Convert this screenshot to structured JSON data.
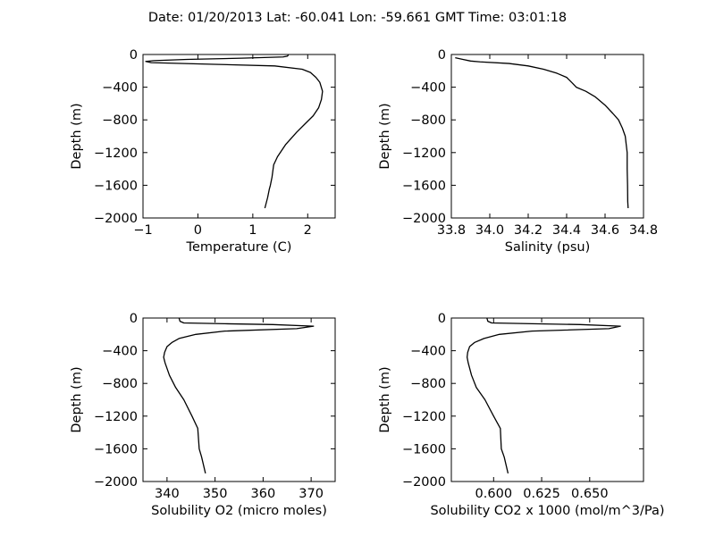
{
  "title": "Date: 01/20/2013  Lat:  -60.041 Lon:  -59.661  GMT Time: 03:01:18",
  "chart_data": [
    {
      "type": "line",
      "xlabel": "Temperature (C)",
      "ylabel": "Depth (m)",
      "xlim": [
        -1,
        2.5
      ],
      "ylim": [
        -2000,
        0
      ],
      "xticks": [
        -1,
        0,
        1,
        2
      ],
      "xtick_labels": [
        "−1",
        "0",
        "1",
        "2"
      ],
      "yticks": [
        0,
        -400,
        -800,
        -1200,
        -1600,
        -2000
      ],
      "ytick_labels": [
        "0",
        "−400",
        "−800",
        "−1200",
        "−1600",
        "−2000"
      ],
      "x": [
        1.65,
        1.63,
        1.55,
        0.8,
        -0.2,
        -0.8,
        -0.95,
        -0.85,
        0.3,
        1.4,
        1.9,
        2.05,
        2.15,
        2.22,
        2.27,
        2.25,
        2.2,
        2.1,
        1.95,
        1.8,
        1.6,
        1.45,
        1.38,
        1.37,
        1.35,
        1.32,
        1.3,
        1.27,
        1.22
      ],
      "y": [
        -5,
        -20,
        -30,
        -45,
        -60,
        -75,
        -85,
        -100,
        -120,
        -140,
        -180,
        -220,
        -280,
        -340,
        -450,
        -550,
        -650,
        -750,
        -850,
        -950,
        -1100,
        -1250,
        -1350,
        -1400,
        -1500,
        -1600,
        -1650,
        -1750,
        -1880
      ]
    },
    {
      "type": "line",
      "xlabel": "Salinity (psu)",
      "ylabel": "Depth (m)",
      "xlim": [
        33.8,
        34.8
      ],
      "ylim": [
        -2000,
        0
      ],
      "xticks": [
        33.8,
        34.0,
        34.2,
        34.4,
        34.6,
        34.8
      ],
      "xtick_labels": [
        "33.8",
        "34.0",
        "34.2",
        "34.4",
        "34.6",
        "34.8"
      ],
      "yticks": [
        0,
        -400,
        -800,
        -1200,
        -1600,
        -2000
      ],
      "ytick_labels": [
        "0",
        "−400",
        "−800",
        "−1200",
        "−1600",
        "−2000"
      ],
      "x": [
        33.82,
        33.86,
        33.9,
        33.95,
        34.1,
        34.2,
        34.28,
        34.35,
        34.4,
        34.43,
        34.45,
        34.5,
        34.55,
        34.6,
        34.64,
        34.67,
        34.69,
        34.705,
        34.71,
        34.715,
        34.715,
        34.717,
        34.718,
        34.72
      ],
      "y": [
        -40,
        -60,
        -80,
        -90,
        -110,
        -140,
        -180,
        -230,
        -280,
        -350,
        -400,
        -450,
        -520,
        -620,
        -720,
        -800,
        -900,
        -1000,
        -1100,
        -1200,
        -1400,
        -1600,
        -1800,
        -1880
      ]
    },
    {
      "type": "line",
      "xlabel": "Solubility O2 (micro moles)",
      "ylabel": "Depth (m)",
      "xlim": [
        335,
        375
      ],
      "ylim": [
        -2000,
        0
      ],
      "xticks": [
        340,
        350,
        360,
        370
      ],
      "xtick_labels": [
        "340",
        "350",
        "360",
        "370"
      ],
      "yticks": [
        0,
        -400,
        -800,
        -1200,
        -1600,
        -2000
      ],
      "ytick_labels": [
        "0",
        "−400",
        "−800",
        "−1200",
        "−1600",
        "−2000"
      ],
      "x": [
        342.5,
        342.7,
        343.5,
        352,
        362,
        370.5,
        367,
        352,
        346,
        342.5,
        341,
        340,
        339.5,
        339.3,
        339.6,
        340.5,
        341.8,
        343.5,
        345.2,
        346.4,
        346.7,
        347.2,
        348
      ],
      "y": [
        0,
        -40,
        -60,
        -70,
        -80,
        -100,
        -130,
        -160,
        -200,
        -250,
        -300,
        -350,
        -420,
        -480,
        -550,
        -700,
        -850,
        -1000,
        -1200,
        -1350,
        -1600,
        -1700,
        -1900
      ]
    },
    {
      "type": "line",
      "xlabel": "Solubility CO2 x 1000 (mol/m^3/Pa)",
      "ylabel": "Depth (m)",
      "xlim": [
        0.578,
        0.678
      ],
      "ylim": [
        -2000,
        0
      ],
      "xticks": [
        0.6,
        0.625,
        0.65
      ],
      "xtick_labels": [
        "0.600",
        "0.625",
        "0.650"
      ],
      "yticks": [
        0,
        -400,
        -800,
        -1200,
        -1600,
        -2000
      ],
      "ytick_labels": [
        "0",
        "−400",
        "−800",
        "−1200",
        "−1600",
        "−2000"
      ],
      "x": [
        0.5965,
        0.597,
        0.599,
        0.62,
        0.645,
        0.666,
        0.66,
        0.62,
        0.603,
        0.595,
        0.59,
        0.5875,
        0.5865,
        0.5862,
        0.5868,
        0.5885,
        0.591,
        0.5955,
        0.6,
        0.6035,
        0.604,
        0.6055,
        0.6075
      ],
      "y": [
        0,
        -40,
        -60,
        -70,
        -80,
        -100,
        -130,
        -160,
        -200,
        -250,
        -300,
        -350,
        -420,
        -480,
        -550,
        -700,
        -850,
        -1000,
        -1200,
        -1350,
        -1600,
        -1700,
        -1900
      ]
    }
  ]
}
